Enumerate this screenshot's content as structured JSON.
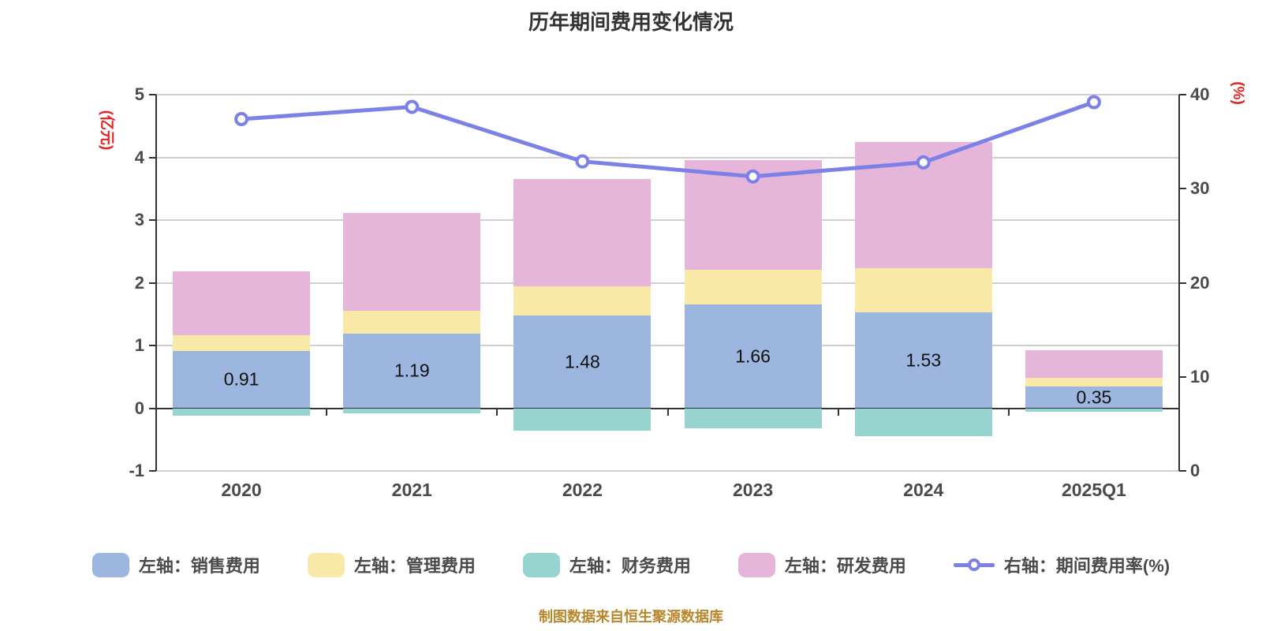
{
  "title": "历年期间费用变化情况",
  "source_note": "制图数据来自恒生聚源数据库",
  "colors": {
    "sales": "#9cb6df",
    "management": "#f9e9a8",
    "finance": "#97d4cf",
    "rnd": "#e5b6da",
    "rate_line": "#7c81e8",
    "grid": "#cfcfcf",
    "axis_line": "#333333",
    "axis_text": "#4a4a4a",
    "axis_name_red": "#e32222",
    "source_note_color": "#b8872b"
  },
  "left_axis": {
    "name": "(亿元)",
    "min": -1,
    "max": 5,
    "ticks": [
      5,
      4,
      3,
      2,
      1,
      0,
      -1
    ]
  },
  "right_axis": {
    "name": "(%)",
    "min": 0,
    "max": 40,
    "ticks": [
      40,
      30,
      20,
      10,
      0
    ]
  },
  "chart_data": {
    "type": "bar",
    "subtype": "stacked bars with secondary-axis line",
    "categories": [
      "2020",
      "2021",
      "2022",
      "2023",
      "2024",
      "2025Q1"
    ],
    "series": [
      {
        "name": "左轴：销售费用",
        "type": "bar",
        "stack": true,
        "axis": "left",
        "color_key": "sales",
        "show_labels": true,
        "values": [
          0.91,
          1.19,
          1.48,
          1.66,
          1.53,
          0.35
        ]
      },
      {
        "name": "左轴：管理费用",
        "type": "bar",
        "stack": true,
        "axis": "left",
        "color_key": "management",
        "show_labels": false,
        "values": [
          0.25,
          0.36,
          0.46,
          0.55,
          0.7,
          0.13
        ]
      },
      {
        "name": "左轴：财务费用",
        "type": "bar",
        "stack": true,
        "axis": "left",
        "color_key": "finance",
        "show_labels": false,
        "values": [
          -0.12,
          -0.08,
          -0.36,
          -0.32,
          -0.45,
          -0.06
        ]
      },
      {
        "name": "左轴：研发费用",
        "type": "bar",
        "stack": true,
        "axis": "left",
        "color_key": "rnd",
        "show_labels": false,
        "values": [
          1.02,
          1.56,
          1.71,
          1.74,
          2.01,
          0.44
        ]
      },
      {
        "name": "右轴：期间费用率(%)",
        "type": "line",
        "stack": false,
        "axis": "right",
        "color_key": "rate_line",
        "show_labels": false,
        "values": [
          37.4,
          38.7,
          32.9,
          31.3,
          32.8,
          39.2
        ]
      }
    ],
    "bar_value_labels": [
      "0.91",
      "1.19",
      "1.48",
      "1.66",
      "1.53",
      "0.35"
    ],
    "left_ylim": [
      -1,
      5
    ],
    "right_ylim": [
      0,
      40
    ],
    "grid": true,
    "legend_position": "bottom"
  },
  "legend": {
    "items": [
      {
        "label": "左轴：销售费用",
        "marker": "rect",
        "color_key": "sales"
      },
      {
        "label": "左轴：管理费用",
        "marker": "rect",
        "color_key": "management"
      },
      {
        "label": "左轴：财务费用",
        "marker": "rect",
        "color_key": "finance"
      },
      {
        "label": "左轴：研发费用",
        "marker": "rect",
        "color_key": "rnd"
      },
      {
        "label": "右轴：期间费用率(%)",
        "marker": "line-dot",
        "color_key": "rate_line"
      }
    ]
  }
}
